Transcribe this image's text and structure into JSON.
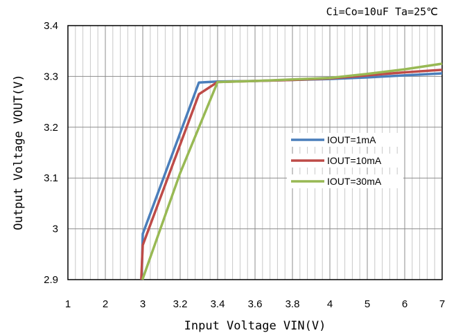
{
  "chart_data": {
    "type": "line",
    "title": "",
    "annotation": "Ci=Co=10uF  Ta=25℃",
    "xlabel": "Input Voltage VIN(V)",
    "ylabel": "Output Voltage VOUT(V)",
    "x_tick_labels": [
      "1",
      "2",
      "3",
      "3.2",
      "3.4",
      "3.6",
      "3.8",
      "4",
      "5",
      "6",
      "7"
    ],
    "y_tick_labels": [
      "3.4",
      "3.3",
      "3.2",
      "3.1",
      "3",
      "2.9"
    ],
    "ylim": [
      2.9,
      3.4
    ],
    "grid": true,
    "legend_position": "center-right",
    "series": [
      {
        "name": "IOUT=1mA",
        "color": "#4a7ebb",
        "points": [
          [
            2.97,
            2.9
          ],
          [
            3.0,
            2.99
          ],
          [
            3.3,
            3.288
          ],
          [
            3.4,
            3.29
          ],
          [
            3.6,
            3.291
          ],
          [
            3.8,
            3.293
          ],
          [
            4.0,
            3.295
          ],
          [
            5.0,
            3.298
          ],
          [
            6.0,
            3.302
          ],
          [
            7.0,
            3.306
          ]
        ]
      },
      {
        "name": "IOUT=10mA",
        "color": "#be4b48",
        "points": [
          [
            2.96,
            2.9
          ],
          [
            3.0,
            2.968
          ],
          [
            3.3,
            3.265
          ],
          [
            3.4,
            3.289
          ],
          [
            3.6,
            3.291
          ],
          [
            3.8,
            3.293
          ],
          [
            4.0,
            3.296
          ],
          [
            5.0,
            3.302
          ],
          [
            6.0,
            3.308
          ],
          [
            7.0,
            3.313
          ]
        ]
      },
      {
        "name": "IOUT=30mA",
        "color": "#98b954",
        "points": [
          [
            2.99,
            2.9
          ],
          [
            3.2,
            3.11
          ],
          [
            3.4,
            3.289
          ],
          [
            3.6,
            3.291
          ],
          [
            3.8,
            3.294
          ],
          [
            4.0,
            3.297
          ],
          [
            5.0,
            3.305
          ],
          [
            6.0,
            3.314
          ],
          [
            7.0,
            3.325
          ]
        ]
      }
    ]
  }
}
